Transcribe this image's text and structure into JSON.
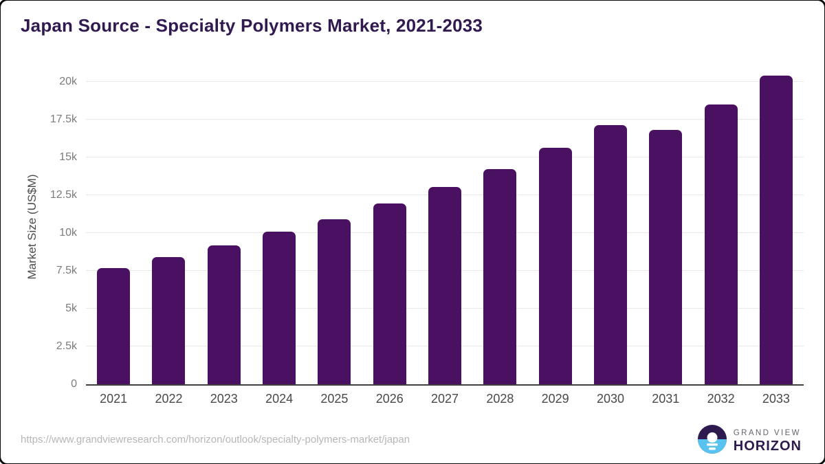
{
  "page": {
    "title": "Japan Source - Specialty Polymers Market, 2021-2033",
    "source_url": "https://www.grandviewresearch.com/horizon/outlook/specialty-polymers-market/japan"
  },
  "chart_data": {
    "type": "bar",
    "title": "Japan Source - Specialty Polymers Market, 2021-2033",
    "xlabel": "",
    "ylabel": "Market Size (US$M)",
    "categories": [
      "2021",
      "2022",
      "2023",
      "2024",
      "2025",
      "2026",
      "2027",
      "2028",
      "2029",
      "2030",
      "2031",
      "2032",
      "2033"
    ],
    "values": [
      7700,
      8400,
      9200,
      10100,
      10900,
      11950,
      13050,
      14250,
      15650,
      17150,
      16800,
      18500,
      20400
    ],
    "ylim": [
      0,
      20000
    ],
    "ytick_values": [
      0,
      2500,
      5000,
      7500,
      10000,
      12500,
      15000,
      17500,
      20000
    ],
    "ytick_labels": [
      "0",
      "2.5k",
      "5k",
      "7.5k",
      "10k",
      "12.5k",
      "15k",
      "17.5k",
      "20k"
    ],
    "grid": "horizontal",
    "legend": "none",
    "bar_color": "#4a1061",
    "grid_color": "#e9e9e9",
    "axis_line_color": "#3f3f3f"
  },
  "branding": {
    "name_top": "GRAND VIEW",
    "name_bottom": "HORIZON",
    "logo_navy": "#2d1b4f",
    "logo_blue": "#59c3f0"
  }
}
